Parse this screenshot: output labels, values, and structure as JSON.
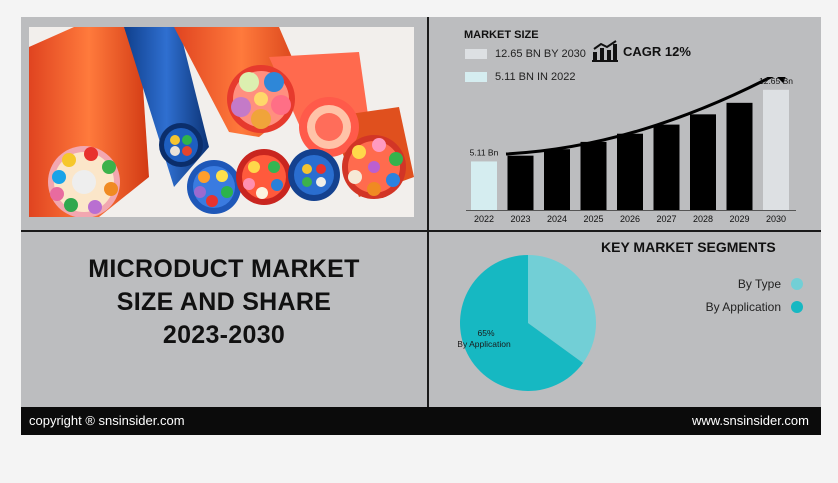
{
  "title_lines": [
    "MICRODUCT MARKET",
    "SIZE AND SHARE",
    "2023-2030"
  ],
  "market_size": {
    "heading": "MARKET SIZE",
    "legend": [
      {
        "label": "12.65 BN BY 2030",
        "color": "#dde0e3"
      },
      {
        "label": "5.11 BN IN 2022",
        "color": "#d5edf0"
      }
    ],
    "cagr_label": "CAGR 12%"
  },
  "chart_data": [
    {
      "type": "bar",
      "categories": [
        "2022",
        "2023",
        "2024",
        "2025",
        "2026",
        "2027",
        "2028",
        "2029",
        "2030"
      ],
      "values": [
        5.11,
        5.72,
        6.4,
        7.17,
        8.03,
        8.99,
        10.07,
        11.28,
        12.65
      ],
      "bar_colors": [
        "#d5edf0",
        "#000000",
        "#000000",
        "#000000",
        "#000000",
        "#000000",
        "#000000",
        "#000000",
        "#dde0e3"
      ],
      "data_labels": [
        {
          "index": 0,
          "text": "5.11 Bn"
        },
        {
          "index": 8,
          "text": "12.65 Bn"
        }
      ],
      "ylim": [
        0,
        14
      ]
    },
    {
      "type": "pie",
      "title": "KEY MARKET SEGMENTS",
      "slices": [
        {
          "name": "By Type",
          "value": 35,
          "color": "#72cfd6"
        },
        {
          "name": "By Application",
          "value": 65,
          "color": "#16b8c2"
        }
      ],
      "slice_label": {
        "pct": "65%",
        "name": "By Application"
      }
    }
  ],
  "footer": {
    "left": "copyright ® snsinsider.com",
    "right": "www.snsinsider.com"
  }
}
